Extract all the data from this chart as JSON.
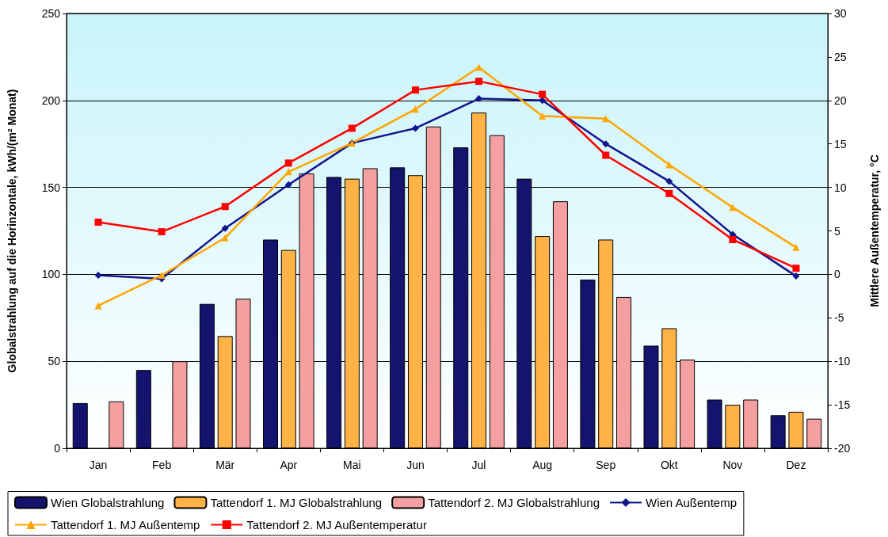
{
  "chart_data": {
    "type": "bar",
    "ylabel": "Globalstrahlung auf die Horinzontale, kWh/(m² Monat)",
    "y2label": "Mittlere Außentemperatur, °C",
    "categories": [
      "Jan",
      "Feb",
      "Mär",
      "Apr",
      "Mai",
      "Jun",
      "Jul",
      "Aug",
      "Sep",
      "Okt",
      "Nov",
      "Dez"
    ],
    "series": [
      {
        "name": "Wien Globalstrahlung",
        "color": "#14146e",
        "values": [
          26,
          45,
          83,
          120,
          156,
          161.5,
          173,
          155,
          97,
          59,
          28,
          19
        ]
      },
      {
        "name": "Tattendorf 1. MJ Globalstrahlung",
        "color": "#ffb347",
        "values": [
          null,
          null,
          64.5,
          114,
          155,
          157,
          193,
          122,
          120,
          69,
          25,
          21
        ]
      },
      {
        "name": "Tattendorf 2. MJ Globalstrahlung",
        "color": "#f4a0a0",
        "values": [
          27,
          50,
          86,
          158,
          161,
          185,
          180,
          142,
          87,
          51,
          28,
          17
        ]
      },
      {
        "name": "Wien Außentemp",
        "type": "line",
        "axis": "y2",
        "marker": "diamond",
        "color": "#14148c",
        "values": [
          -0.1,
          -0.5,
          5.3,
          10.3,
          15.1,
          16.8,
          20.2,
          20.0,
          15.0,
          10.7,
          4.6,
          -0.2
        ]
      },
      {
        "name": "Tattendorf 1. MJ Außentemp",
        "type": "line",
        "axis": "y2",
        "marker": "triangle",
        "color": "#ffa500",
        "values": [
          -3.6,
          -0.1,
          4.2,
          11.8,
          15.1,
          19.0,
          23.8,
          18.2,
          17.9,
          12.6,
          7.7,
          3.1
        ]
      },
      {
        "name": "Tattendorf 2. MJ Außentemperatur",
        "type": "line",
        "axis": "y2",
        "marker": "square",
        "color": "#ff0000",
        "values": [
          6.0,
          4.9,
          7.8,
          12.8,
          16.8,
          21.2,
          22.2,
          20.7,
          13.7,
          9.3,
          4.0,
          0.7
        ]
      }
    ],
    "ylim": [
      0,
      250
    ],
    "yticks": [
      0,
      50,
      100,
      150,
      200,
      250
    ],
    "y2lim": [
      -20,
      30
    ],
    "y2ticks": [
      -20,
      -15,
      -10,
      -5,
      0,
      5,
      10,
      15,
      20,
      25,
      30
    ],
    "grid": "y",
    "legend": "bottom"
  }
}
